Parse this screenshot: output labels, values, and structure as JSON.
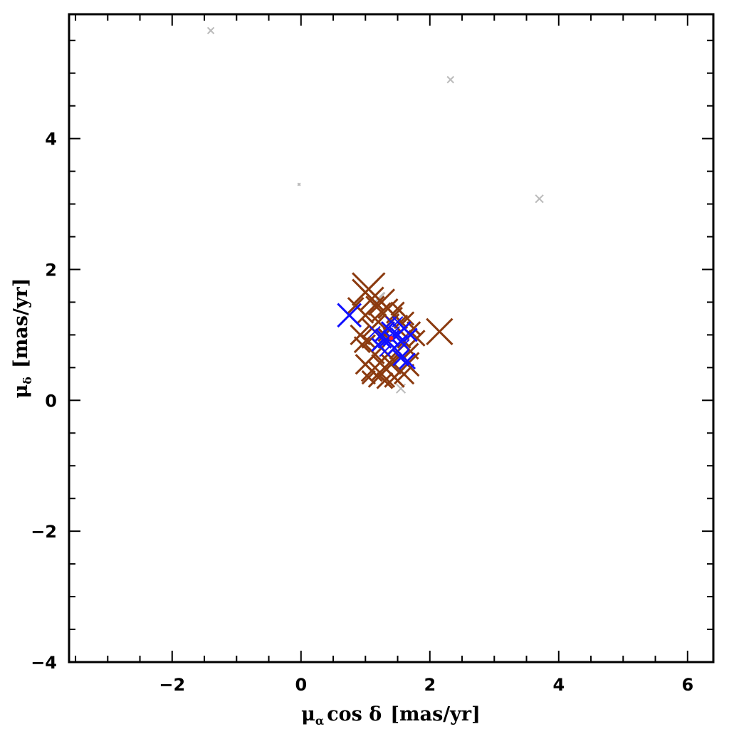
{
  "chart_data": {
    "type": "scatter",
    "title": "",
    "xlabel": {
      "mu": "μ",
      "sub": "α",
      "rest": "cos δ",
      "unit": "[mas/yr]"
    },
    "ylabel": {
      "mu": "μ",
      "sub": "δ",
      "unit": "[mas/yr]"
    },
    "xlim": [
      -3.6,
      6.4
    ],
    "ylim": [
      -4.0,
      5.9
    ],
    "xticks": [
      -2,
      0,
      2,
      4,
      6
    ],
    "yticks": [
      -4,
      -2,
      0,
      2,
      4
    ],
    "grid": false,
    "legend": "none",
    "series": [
      {
        "color": "#bbbbbb",
        "marker": "x",
        "points": [
          {
            "x": -1.4,
            "y": 5.65,
            "size": 0.05
          },
          {
            "x": 2.32,
            "y": 4.9,
            "size": 0.05
          },
          {
            "x": 3.7,
            "y": 3.08,
            "size": 0.06
          },
          {
            "x": -0.03,
            "y": 3.3,
            "size": 0.02
          },
          {
            "x": 1.55,
            "y": 0.18,
            "size": 0.07
          },
          {
            "x": 1.2,
            "y": 1.55,
            "size": 0.1
          }
        ]
      },
      {
        "color": "#8b3a0f",
        "marker": "x",
        "points": [
          {
            "x": 1.0,
            "y": 1.65,
            "size": 0.2
          },
          {
            "x": 1.05,
            "y": 1.7,
            "size": 0.25
          },
          {
            "x": 1.25,
            "y": 1.5,
            "size": 0.2
          },
          {
            "x": 1.1,
            "y": 1.55,
            "size": 0.18
          },
          {
            "x": 1.35,
            "y": 1.4,
            "size": 0.15
          },
          {
            "x": 1.45,
            "y": 1.3,
            "size": 0.12
          },
          {
            "x": 1.55,
            "y": 1.2,
            "size": 0.1
          },
          {
            "x": 1.65,
            "y": 1.25,
            "size": 0.1
          },
          {
            "x": 1.0,
            "y": 1.3,
            "size": 0.12
          },
          {
            "x": 0.92,
            "y": 1.0,
            "size": 0.15
          },
          {
            "x": 0.95,
            "y": 0.85,
            "size": 0.12
          },
          {
            "x": 1.1,
            "y": 1.1,
            "size": 0.15
          },
          {
            "x": 1.2,
            "y": 1.2,
            "size": 0.12
          },
          {
            "x": 1.05,
            "y": 0.9,
            "size": 0.1
          },
          {
            "x": 1.15,
            "y": 0.7,
            "size": 0.14
          },
          {
            "x": 1.0,
            "y": 0.55,
            "size": 0.15
          },
          {
            "x": 1.1,
            "y": 0.45,
            "size": 0.16
          },
          {
            "x": 1.25,
            "y": 0.4,
            "size": 0.2
          },
          {
            "x": 1.3,
            "y": 0.5,
            "size": 0.2
          },
          {
            "x": 1.4,
            "y": 0.55,
            "size": 0.15
          },
          {
            "x": 1.45,
            "y": 0.35,
            "size": 0.15
          },
          {
            "x": 1.6,
            "y": 0.4,
            "size": 0.15
          },
          {
            "x": 1.65,
            "y": 0.55,
            "size": 0.18
          },
          {
            "x": 1.7,
            "y": 0.75,
            "size": 0.12
          },
          {
            "x": 1.8,
            "y": 0.95,
            "size": 0.12
          },
          {
            "x": 1.75,
            "y": 1.1,
            "size": 0.1
          },
          {
            "x": 1.6,
            "y": 0.9,
            "size": 0.1
          },
          {
            "x": 2.15,
            "y": 1.05,
            "size": 0.2
          },
          {
            "x": 1.3,
            "y": 1.0,
            "size": 0.1
          },
          {
            "x": 1.2,
            "y": 0.85,
            "size": 0.1
          },
          {
            "x": 1.35,
            "y": 0.7,
            "size": 0.12
          },
          {
            "x": 1.5,
            "y": 0.75,
            "size": 0.12
          },
          {
            "x": 1.55,
            "y": 1.05,
            "size": 0.12
          },
          {
            "x": 1.4,
            "y": 1.2,
            "size": 0.12
          },
          {
            "x": 1.25,
            "y": 1.35,
            "size": 0.14
          },
          {
            "x": 1.15,
            "y": 1.45,
            "size": 0.14
          },
          {
            "x": 0.85,
            "y": 1.45,
            "size": 0.12
          },
          {
            "x": 1.5,
            "y": 1.4,
            "size": 0.1
          },
          {
            "x": 1.3,
            "y": 0.3,
            "size": 0.12
          },
          {
            "x": 1.05,
            "y": 0.35,
            "size": 0.1
          }
        ]
      },
      {
        "color": "#1010ff",
        "marker": "x",
        "points": [
          {
            "x": 0.75,
            "y": 1.3,
            "size": 0.18
          },
          {
            "x": 1.4,
            "y": 0.95,
            "size": 0.12
          },
          {
            "x": 1.3,
            "y": 0.9,
            "size": 0.1
          },
          {
            "x": 1.5,
            "y": 1.0,
            "size": 0.1
          },
          {
            "x": 1.25,
            "y": 1.0,
            "size": 0.09
          },
          {
            "x": 1.55,
            "y": 0.9,
            "size": 0.1
          },
          {
            "x": 1.35,
            "y": 1.1,
            "size": 0.1
          },
          {
            "x": 1.45,
            "y": 0.8,
            "size": 0.1
          },
          {
            "x": 1.6,
            "y": 1.1,
            "size": 0.1
          },
          {
            "x": 1.2,
            "y": 0.85,
            "size": 0.1
          },
          {
            "x": 1.7,
            "y": 1.0,
            "size": 0.1
          },
          {
            "x": 1.4,
            "y": 1.2,
            "size": 0.08
          },
          {
            "x": 1.55,
            "y": 0.65,
            "size": 0.12
          },
          {
            "x": 1.65,
            "y": 0.6,
            "size": 0.12
          },
          {
            "x": 1.3,
            "y": 0.75,
            "size": 0.08
          },
          {
            "x": 1.5,
            "y": 1.2,
            "size": 0.08
          },
          {
            "x": 1.15,
            "y": 1.05,
            "size": 0.08
          },
          {
            "x": 1.6,
            "y": 0.85,
            "size": 0.08
          },
          {
            "x": 1.45,
            "y": 1.05,
            "size": 0.08
          }
        ]
      },
      {
        "color": "#ff2020",
        "marker": "dot",
        "points": [
          {
            "x": 1.4,
            "y": 0.95,
            "size": 0.03
          }
        ]
      }
    ]
  }
}
